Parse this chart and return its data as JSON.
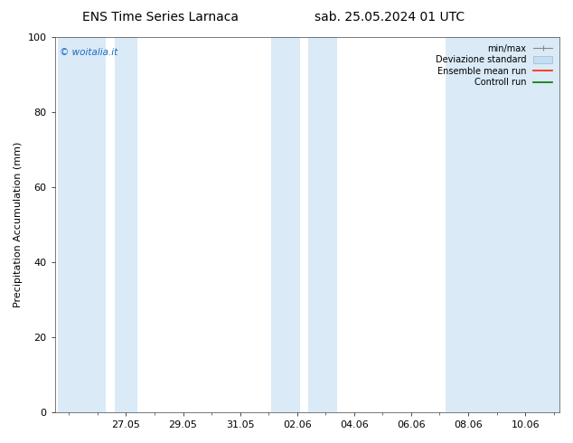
{
  "title_left": "ENS Time Series Larnaca",
  "title_right": "sab. 25.05.2024 01 UTC",
  "ylabel": "Precipitation Accumulation (mm)",
  "ylim": [
    0,
    100
  ],
  "yticks": [
    0,
    20,
    40,
    60,
    80,
    100
  ],
  "xtick_labels": [
    "27.05",
    "29.05",
    "31.05",
    "02.06",
    "04.06",
    "06.06",
    "08.06",
    "10.06"
  ],
  "bg_color": "#ffffff",
  "plot_bg_color": "#ffffff",
  "shaded_color": "#daeaf7",
  "watermark_text": "© woitalia.it",
  "watermark_color": "#1a6abf",
  "legend_labels": [
    "min/max",
    "Deviazione standard",
    "Ensemble mean run",
    "Controll run"
  ],
  "title_fontsize": 10,
  "axis_fontsize": 8,
  "tick_fontsize": 8,
  "shaded_bands_x": [
    [
      -0.4,
      1.3
    ],
    [
      1.6,
      2.4
    ],
    [
      7.1,
      8.1
    ],
    [
      8.4,
      9.4
    ],
    [
      13.2,
      17.2
    ]
  ],
  "tick_x": [
    2,
    4,
    6,
    8,
    10,
    12,
    14,
    16
  ],
  "x_min": -0.5,
  "x_max": 17.2
}
